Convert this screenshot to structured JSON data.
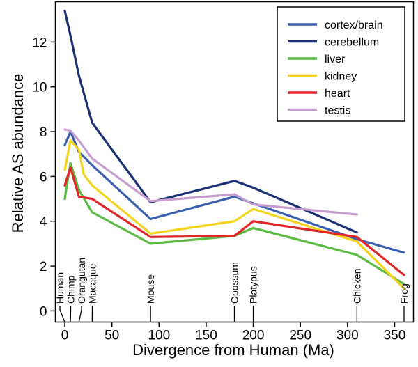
{
  "chart_data": {
    "type": "line",
    "title": "",
    "xlabel": "Divergence from Human (Ma)",
    "ylabel": "Relative AS abundance",
    "xlim": [
      -10,
      370
    ],
    "ylim": [
      -0.5,
      13.8
    ],
    "xticks": [
      0,
      50,
      100,
      150,
      200,
      250,
      300,
      350
    ],
    "yticks": [
      0,
      2,
      4,
      6,
      8,
      10,
      12
    ],
    "grid": false,
    "legend_position": "top-right",
    "species": [
      {
        "name": "Human",
        "x": 0
      },
      {
        "name": "Chimp",
        "x": 6
      },
      {
        "name": "Orangutan",
        "x": 15
      },
      {
        "name": "Macaque",
        "x": 29
      },
      {
        "name": "Mouse",
        "x": 91
      },
      {
        "name": "Opossum",
        "x": 180
      },
      {
        "name": "Platypus",
        "x": 200
      },
      {
        "name": "Chicken",
        "x": 310
      },
      {
        "name": "Frog",
        "x": 360
      }
    ],
    "series": [
      {
        "name": "cortex/brain",
        "color": "#3a5fb0",
        "points": [
          [
            0,
            7.4
          ],
          [
            6,
            8.0
          ],
          [
            15,
            7.1
          ],
          [
            29,
            6.5
          ],
          [
            91,
            4.1
          ],
          [
            180,
            5.1
          ],
          [
            200,
            4.8
          ],
          [
            310,
            3.2
          ],
          [
            360,
            2.6
          ]
        ]
      },
      {
        "name": "cerebellum",
        "color": "#1b2f74",
        "points": [
          [
            0,
            13.4
          ],
          [
            6,
            12.3
          ],
          [
            15,
            10.5
          ],
          [
            29,
            8.4
          ],
          [
            91,
            4.85
          ],
          [
            180,
            5.8
          ],
          [
            200,
            5.5
          ],
          [
            310,
            3.5
          ]
        ]
      },
      {
        "name": "liver",
        "color": "#5bbb45",
        "points": [
          [
            0,
            5.0
          ],
          [
            6,
            6.6
          ],
          [
            15,
            5.4
          ],
          [
            29,
            4.4
          ],
          [
            91,
            3.0
          ],
          [
            180,
            3.35
          ],
          [
            200,
            3.7
          ],
          [
            310,
            2.5
          ],
          [
            360,
            1.2
          ]
        ]
      },
      {
        "name": "kidney",
        "color": "#f3d31c",
        "points": [
          [
            0,
            6.3
          ],
          [
            6,
            7.6
          ],
          [
            15,
            7.2
          ],
          [
            20,
            6.1
          ],
          [
            29,
            5.6
          ],
          [
            91,
            3.45
          ],
          [
            180,
            4.0
          ],
          [
            200,
            4.55
          ],
          [
            310,
            3.1
          ],
          [
            360,
            1.0
          ]
        ]
      },
      {
        "name": "heart",
        "color": "#e1262a",
        "points": [
          [
            0,
            5.6
          ],
          [
            6,
            6.4
          ],
          [
            15,
            5.1
          ],
          [
            29,
            5.0
          ],
          [
            91,
            3.3
          ],
          [
            180,
            3.35
          ],
          [
            200,
            4.0
          ],
          [
            310,
            3.3
          ],
          [
            360,
            1.6
          ]
        ]
      },
      {
        "name": "testis",
        "color": "#c79dcf",
        "points": [
          [
            0,
            8.1
          ],
          [
            6,
            8.05
          ],
          [
            15,
            7.6
          ],
          [
            29,
            6.8
          ],
          [
            91,
            4.9
          ],
          [
            180,
            5.2
          ],
          [
            200,
            4.75
          ],
          [
            310,
            4.3
          ]
        ]
      }
    ]
  }
}
